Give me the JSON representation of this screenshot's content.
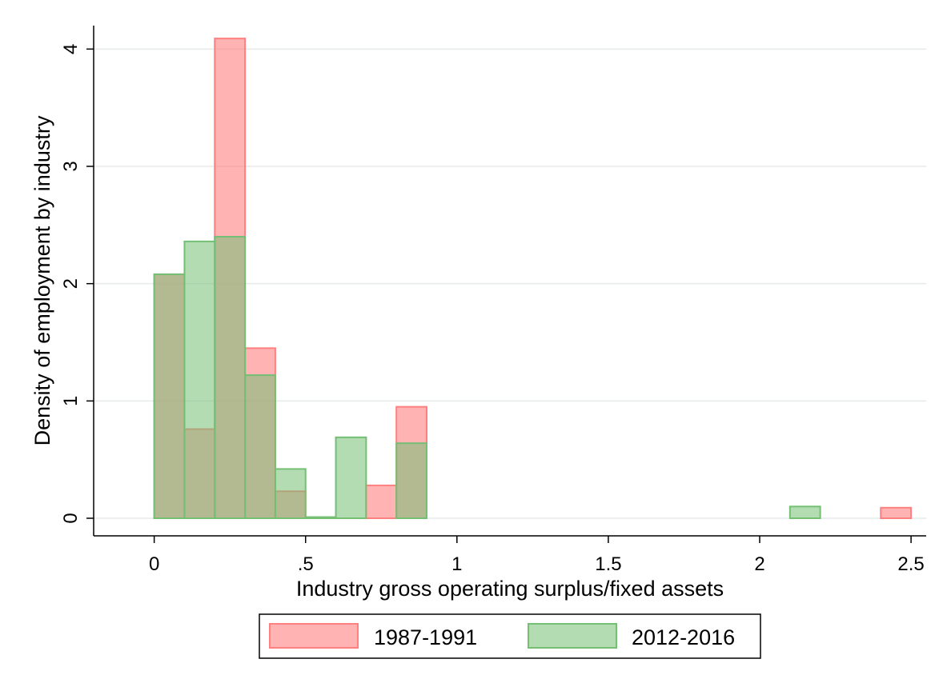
{
  "chart_data": {
    "type": "bar",
    "xlabel": "Industry gross operating surplus/fixed assets",
    "ylabel": "Density of employment by industry",
    "xlim": [
      -0.2,
      2.55
    ],
    "ylim": [
      -0.15,
      4.2
    ],
    "x_ticks": [
      {
        "value": 0,
        "label": "0"
      },
      {
        "value": 0.5,
        "label": ".5"
      },
      {
        "value": 1,
        "label": "1"
      },
      {
        "value": 1.5,
        "label": "1.5"
      },
      {
        "value": 2,
        "label": "2"
      },
      {
        "value": 2.5,
        "label": "2.5"
      }
    ],
    "y_ticks": [
      {
        "value": 0,
        "label": "0"
      },
      {
        "value": 1,
        "label": "1"
      },
      {
        "value": 2,
        "label": "2"
      },
      {
        "value": 3,
        "label": "3"
      },
      {
        "value": 4,
        "label": "4"
      }
    ],
    "grid": true,
    "legend_position": "bottom",
    "series": [
      {
        "name": "1987-1991",
        "color": "#ff8080",
        "fill_opacity": 0.6,
        "bars": [
          {
            "x0": 0.0,
            "x1": 0.1,
            "value": 2.08
          },
          {
            "x0": 0.1,
            "x1": 0.2,
            "value": 0.76
          },
          {
            "x0": 0.2,
            "x1": 0.3,
            "value": 4.09
          },
          {
            "x0": 0.3,
            "x1": 0.4,
            "value": 1.45
          },
          {
            "x0": 0.4,
            "x1": 0.5,
            "value": 0.23
          },
          {
            "x0": 0.7,
            "x1": 0.8,
            "value": 0.28
          },
          {
            "x0": 0.8,
            "x1": 0.9,
            "value": 0.95
          },
          {
            "x0": 2.4,
            "x1": 2.5,
            "value": 0.09
          }
        ]
      },
      {
        "name": "2012-2016",
        "color": "#75bf75",
        "fill_opacity": 0.55,
        "bars": [
          {
            "x0": 0.0,
            "x1": 0.1,
            "value": 2.08
          },
          {
            "x0": 0.1,
            "x1": 0.2,
            "value": 2.36
          },
          {
            "x0": 0.2,
            "x1": 0.3,
            "value": 2.4
          },
          {
            "x0": 0.3,
            "x1": 0.4,
            "value": 1.22
          },
          {
            "x0": 0.4,
            "x1": 0.5,
            "value": 0.42
          },
          {
            "x0": 0.5,
            "x1": 0.6,
            "value": 0.01
          },
          {
            "x0": 0.6,
            "x1": 0.7,
            "value": 0.69
          },
          {
            "x0": 0.8,
            "x1": 0.9,
            "value": 0.64
          },
          {
            "x0": 2.1,
            "x1": 2.2,
            "value": 0.1
          }
        ]
      }
    ]
  }
}
